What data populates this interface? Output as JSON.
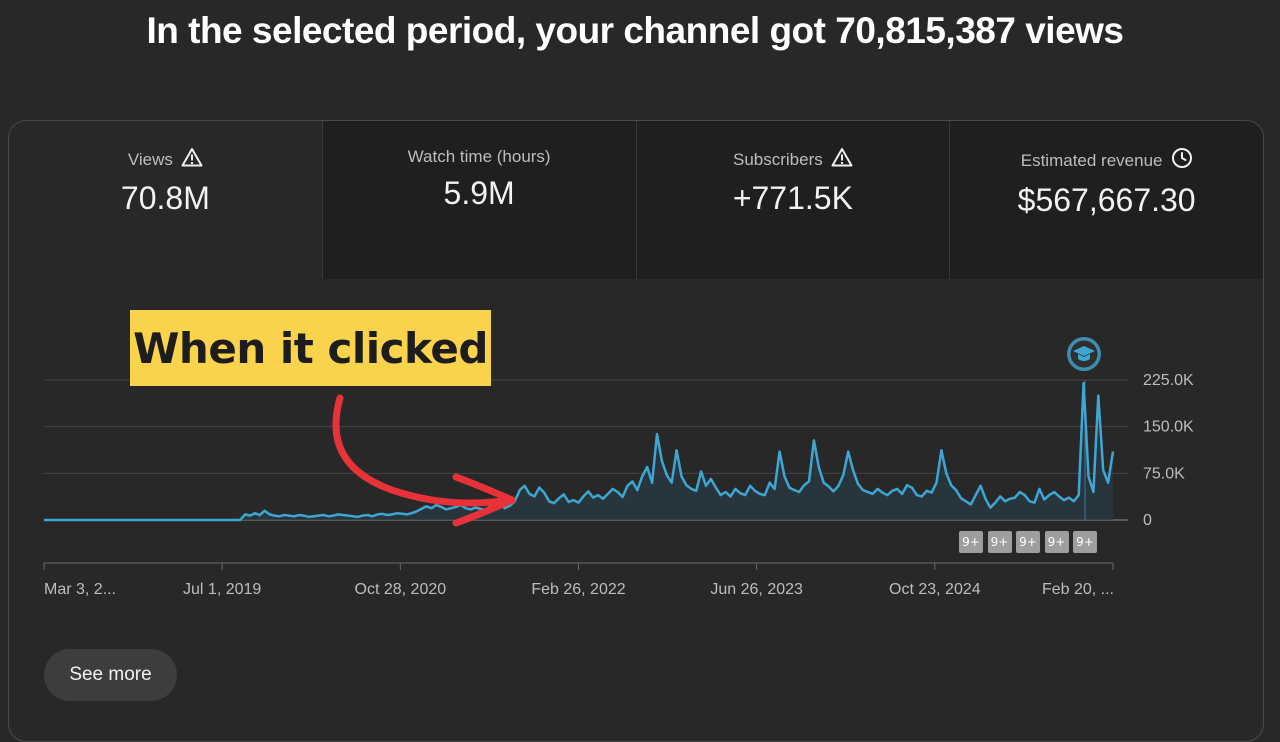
{
  "headline": "In the selected period, your channel got 70,815,387 views",
  "metrics": [
    {
      "label": "Views",
      "value": "70.8M",
      "icon": "warning-icon"
    },
    {
      "label": "Watch time (hours)",
      "value": "5.9M",
      "icon": ""
    },
    {
      "label": "Subscribers",
      "value": "+771.5K",
      "icon": "warning-icon"
    },
    {
      "label": "Estimated revenue",
      "value": "$567,667.30",
      "icon": "clock-icon"
    }
  ],
  "callout": "When it clicked",
  "see_more": "See more",
  "badges": [
    "9+",
    "9+",
    "9+",
    "9+",
    "9+"
  ],
  "colors": {
    "line": "#3ea6d3",
    "callout_bg": "#f9d34b",
    "arrow": "#e8323a",
    "background": "#282828"
  },
  "chart_data": {
    "type": "line",
    "x_tick_labels": [
      "Mar 3, 2...",
      "Jul 1, 2019",
      "Oct 28, 2020",
      "Feb 26, 2022",
      "Jun 26, 2023",
      "Oct 23, 2024",
      "Feb 20, ..."
    ],
    "y_tick_labels": [
      "225.0K",
      "150.0K",
      "75.0K",
      "0"
    ],
    "y_ticks": [
      225000,
      150000,
      75000,
      0
    ],
    "ylim": [
      0,
      225000
    ],
    "series": [
      {
        "values": [
          0,
          0,
          0,
          0,
          0,
          0,
          0,
          0,
          0,
          0,
          0,
          0,
          0,
          0,
          0,
          0,
          0,
          0,
          0,
          0,
          0,
          0,
          0,
          0,
          0,
          0,
          0,
          0,
          0,
          0,
          0,
          0,
          0,
          0,
          0,
          0,
          0,
          0,
          0,
          0,
          0,
          9000,
          7000,
          11000,
          8000,
          15000,
          9000,
          7000,
          6000,
          8000,
          7000,
          6000,
          8000,
          7000,
          5000,
          6000,
          7000,
          8000,
          6000,
          7000,
          9000,
          8000,
          7000,
          6000,
          5000,
          7000,
          8000,
          6000,
          9000,
          10000,
          8000,
          9000,
          11000,
          10000,
          9000,
          11000,
          14000,
          18000,
          22000,
          19000,
          24000,
          21000,
          17000,
          19000,
          21000,
          24000,
          19000,
          17000,
          20000,
          18000,
          16000,
          22000,
          20000,
          25000,
          19000,
          23000,
          30000,
          48000,
          55000,
          42000,
          38000,
          52000,
          44000,
          30000,
          27000,
          35000,
          41000,
          29000,
          32000,
          28000,
          38000,
          46000,
          36000,
          40000,
          34000,
          42000,
          50000,
          45000,
          37000,
          55000,
          62000,
          48000,
          70000,
          85000,
          60000,
          138000,
          95000,
          72000,
          60000,
          112000,
          70000,
          56000,
          50000,
          47000,
          78000,
          55000,
          66000,
          52000,
          40000,
          45000,
          38000,
          50000,
          43000,
          40000,
          55000,
          47000,
          42000,
          40000,
          60000,
          50000,
          110000,
          70000,
          52000,
          48000,
          45000,
          56000,
          62000,
          128000,
          85000,
          60000,
          54000,
          46000,
          55000,
          72000,
          110000,
          80000,
          58000,
          48000,
          45000,
          42000,
          50000,
          44000,
          40000,
          47000,
          50000,
          42000,
          56000,
          52000,
          40000,
          38000,
          47000,
          44000,
          60000,
          112000,
          75000,
          56000,
          48000,
          35000,
          30000,
          25000,
          40000,
          55000,
          34000,
          20000,
          28000,
          38000,
          30000,
          34000,
          36000,
          45000,
          40000,
          30000,
          28000,
          50000,
          33000,
          40000,
          45000,
          38000,
          32000,
          36000,
          30000,
          40000,
          220000,
          70000,
          45000,
          200000,
          80000,
          60000,
          110000
        ]
      }
    ],
    "legend": "none",
    "grid": true
  }
}
